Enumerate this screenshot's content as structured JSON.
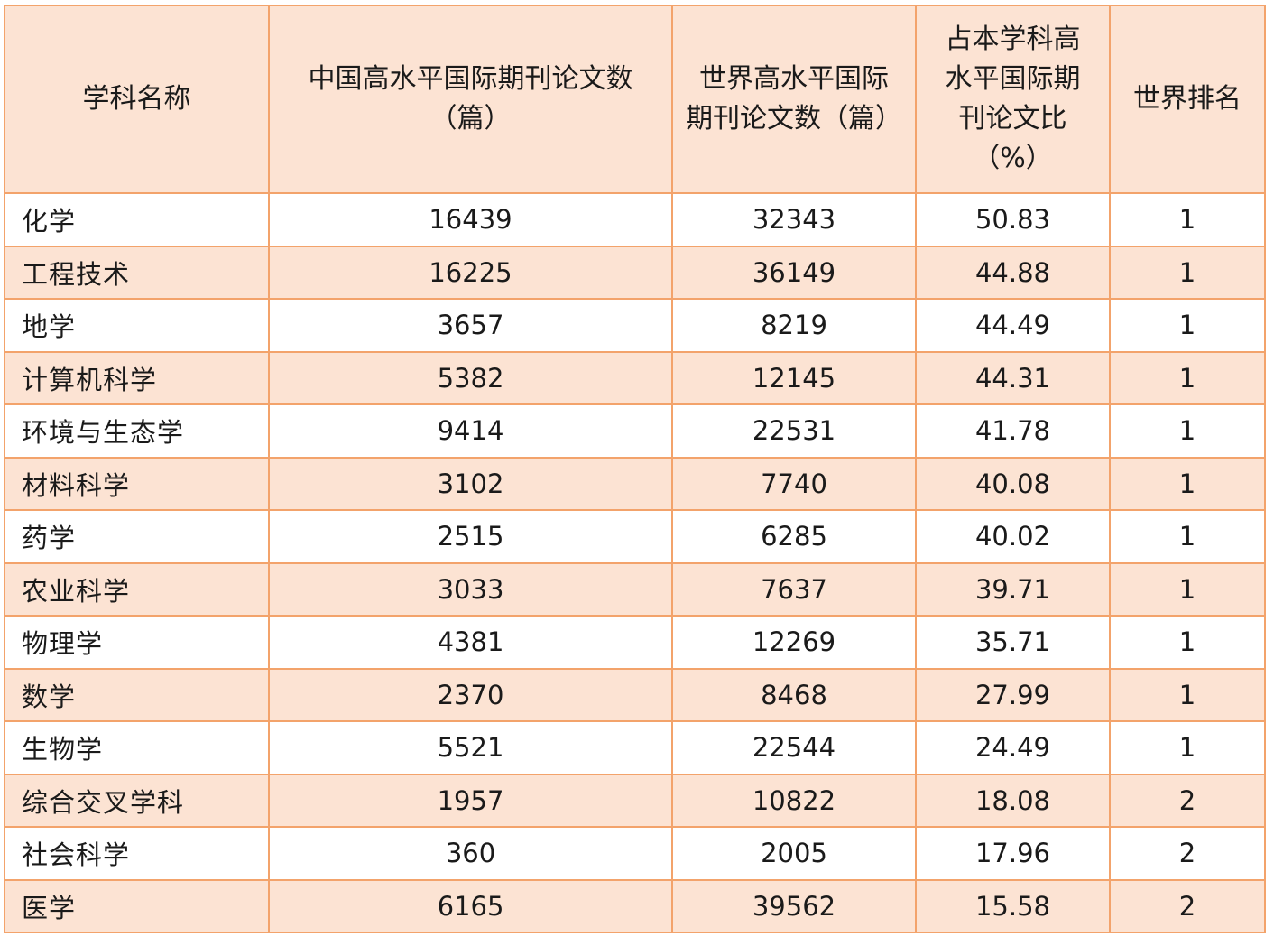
{
  "table": {
    "headers": [
      {
        "line1": "学科名称",
        "line2": ""
      },
      {
        "line1": "中国高水平国际期刊论文数",
        "line2": "（篇）"
      },
      {
        "line1": "世界高水平国际",
        "line2": "期刊论文数（篇）"
      },
      {
        "line1": "占本学科高",
        "line2": "水平国际期",
        "line3": "刊论文比",
        "line4": "（%）"
      },
      {
        "line1": "世界排名",
        "line2": ""
      }
    ],
    "rows": [
      {
        "subject": "化学",
        "china": "16439",
        "world": "32343",
        "ratio": "50.83",
        "rank": "1"
      },
      {
        "subject": "工程技术",
        "china": "16225",
        "world": "36149",
        "ratio": "44.88",
        "rank": "1"
      },
      {
        "subject": "地学",
        "china": "3657",
        "world": "8219",
        "ratio": "44.49",
        "rank": "1"
      },
      {
        "subject": "计算机科学",
        "china": "5382",
        "world": "12145",
        "ratio": "44.31",
        "rank": "1"
      },
      {
        "subject": "环境与生态学",
        "china": "9414",
        "world": "22531",
        "ratio": "41.78",
        "rank": "1"
      },
      {
        "subject": "材料科学",
        "china": "3102",
        "world": "7740",
        "ratio": "40.08",
        "rank": "1"
      },
      {
        "subject": "药学",
        "china": "2515",
        "world": "6285",
        "ratio": "40.02",
        "rank": "1"
      },
      {
        "subject": "农业科学",
        "china": "3033",
        "world": "7637",
        "ratio": "39.71",
        "rank": "1"
      },
      {
        "subject": "物理学",
        "china": "4381",
        "world": "12269",
        "ratio": "35.71",
        "rank": "1"
      },
      {
        "subject": "数学",
        "china": "2370",
        "world": "8468",
        "ratio": "27.99",
        "rank": "1"
      },
      {
        "subject": "生物学",
        "china": "5521",
        "world": "22544",
        "ratio": "24.49",
        "rank": "1"
      },
      {
        "subject": "综合交叉学科",
        "china": "1957",
        "world": "10822",
        "ratio": "18.08",
        "rank": "2"
      },
      {
        "subject": "社会科学",
        "china": "360",
        "world": "2005",
        "ratio": "17.96",
        "rank": "2"
      },
      {
        "subject": "医学",
        "china": "6165",
        "world": "39562",
        "ratio": "15.58",
        "rank": "2"
      }
    ]
  },
  "colors": {
    "border": "#f3a36b",
    "header_bg": "#fce3d3",
    "stripe_bg": "#fce3d3",
    "row_bg": "#ffffff"
  }
}
